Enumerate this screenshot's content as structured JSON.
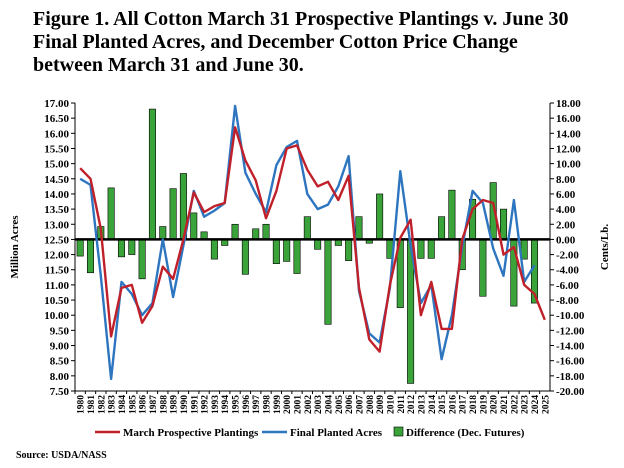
{
  "title_lines": [
    "Figure 1.  All Cotton March 31 Prospective Plantings v. June 30",
    "Final Planted Acres, and December Cotton Price Change",
    "between March 31 and June 30."
  ],
  "source": "Source: USDA/NASS",
  "colors": {
    "prospective": "#c0202a",
    "final": "#2e75c0",
    "difference": "#3aa33a",
    "difference_edge": "#000000",
    "zero_line": "#000000"
  },
  "chart_data": {
    "type": "line",
    "years": [
      "1980",
      "1981",
      "1982",
      "1983",
      "1984",
      "1985",
      "1986",
      "1987",
      "1988",
      "1989",
      "1990",
      "1991",
      "1992",
      "1993",
      "1994",
      "1995",
      "1996",
      "1997",
      "1998",
      "1999",
      "2000",
      "2001",
      "2002",
      "2003",
      "2004",
      "2005",
      "2006",
      "2007",
      "2008",
      "2009",
      "2010",
      "2011",
      "2012",
      "2013",
      "2014",
      "2015",
      "2016",
      "2017",
      "2018",
      "2019",
      "2020",
      "2021",
      "2022",
      "2023",
      "2024",
      "2025"
    ],
    "left_axis": {
      "label": "Million Acres",
      "min": 7.5,
      "max": 17.0,
      "ticks": [
        "7.50",
        "8.00",
        "8.50",
        "9.00",
        "9.50",
        "10.00",
        "10.50",
        "11.00",
        "11.50",
        "12.00",
        "12.50",
        "13.00",
        "13.50",
        "14.00",
        "14.50",
        "15.00",
        "15.50",
        "16.00",
        "16.50",
        "17.00"
      ]
    },
    "right_axis": {
      "label": "Cents/Lb.",
      "min": -20.0,
      "max": 18.0,
      "ticks": [
        "18.00",
        "16.00",
        "14.00",
        "12.00",
        "10.00",
        "8.00",
        "6.00",
        "4.00",
        "2.00",
        "0.00",
        "-2.00",
        "-4.00",
        "-6.00",
        "-8.00",
        "-10.00",
        "-12.00",
        "-14.00",
        "-16.00",
        "-18.00",
        "-20.00"
      ]
    },
    "series": [
      {
        "name": "March Prospective Plantings",
        "axis": "left",
        "values": [
          14.85,
          14.5,
          12.85,
          9.3,
          10.9,
          11.0,
          9.75,
          10.3,
          11.6,
          11.2,
          12.5,
          14.05,
          13.4,
          13.6,
          13.7,
          16.2,
          15.1,
          14.45,
          13.2,
          14.1,
          15.5,
          15.6,
          14.8,
          14.25,
          14.4,
          13.8,
          14.6,
          10.9,
          9.2,
          8.8,
          11.0,
          12.55,
          13.15,
          10.0,
          11.1,
          9.55,
          9.55,
          12.5,
          13.5,
          13.8,
          13.7,
          12.0,
          12.25,
          11.0,
          10.7,
          9.85
        ]
      },
      {
        "name": "Final Planted Acres",
        "axis": "left",
        "values": [
          14.5,
          14.3,
          11.3,
          7.9,
          11.1,
          10.7,
          10.0,
          10.4,
          12.5,
          10.6,
          12.3,
          14.1,
          13.25,
          13.45,
          13.7,
          16.9,
          14.7,
          14.0,
          13.4,
          14.95,
          15.55,
          15.75,
          14.0,
          13.5,
          13.65,
          14.25,
          15.25,
          10.8,
          9.4,
          9.1,
          10.9,
          14.75,
          12.3,
          10.4,
          11.0,
          8.55,
          10.0,
          12.25,
          14.1,
          13.7,
          12.2,
          11.3,
          13.8,
          11.1,
          11.65,
          null
        ]
      },
      {
        "name": "Difference (Dec. Futures)",
        "axis": "right",
        "type": "bar",
        "values": [
          -2.2,
          -4.4,
          1.7,
          6.8,
          -2.3,
          -2.0,
          -5.2,
          17.2,
          1.7,
          6.7,
          8.7,
          3.5,
          1.0,
          -2.6,
          -0.8,
          2.0,
          -4.6,
          1.4,
          2.0,
          -3.2,
          -2.9,
          -4.5,
          3.0,
          -1.3,
          -11.2,
          -0.8,
          -2.8,
          3.0,
          -0.5,
          6.0,
          -2.5,
          -9.0,
          -19.0,
          -2.5,
          -2.5,
          3.0,
          6.5,
          -4.0,
          5.3,
          -7.5,
          7.5,
          4.0,
          -8.8,
          -2.6,
          -8.4,
          null
        ]
      }
    ],
    "legend_position": "bottom",
    "grid": false
  }
}
